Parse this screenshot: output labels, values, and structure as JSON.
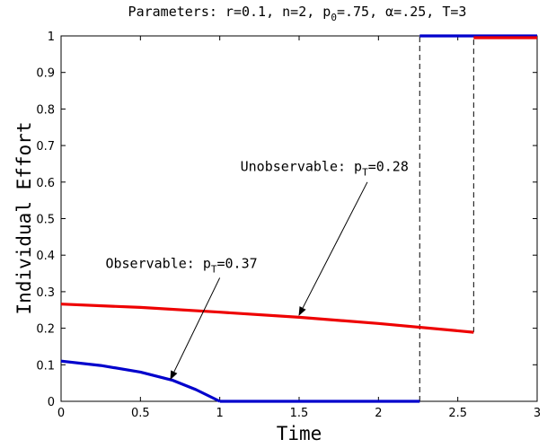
{
  "chart_data": {
    "type": "line",
    "title": {
      "prefix": "Parameters: r=0.1, n=2, p",
      "sub": "0",
      "suffix": "=.75, α=.25, T=3"
    },
    "xlabel": "Time",
    "ylabel": "Individual Effort",
    "xlim": [
      0,
      3
    ],
    "ylim": [
      0,
      1
    ],
    "xticks": [
      0,
      0.5,
      1,
      1.5,
      2,
      2.5,
      3
    ],
    "xtick_labels": [
      "0",
      "0.5",
      "1",
      "1.5",
      "2",
      "2.5",
      "3"
    ],
    "yticks": [
      0,
      0.1,
      0.2,
      0.3,
      0.4,
      0.5,
      0.6,
      0.7,
      0.8,
      0.9,
      1
    ],
    "ytick_labels": [
      "0",
      "0.1",
      "0.2",
      "0.3",
      "0.4",
      "0.5",
      "0.6",
      "0.7",
      "0.8",
      "0.9",
      "1"
    ],
    "grid": false,
    "series": [
      {
        "color": "#0000cc",
        "segments": [
          {
            "x": [
              0,
              0.25,
              0.5,
              0.7,
              0.85,
              1.0
            ],
            "y": [
              0.11,
              0.098,
              0.08,
              0.058,
              0.032,
              0.0
            ]
          },
          {
            "x": [
              1.0,
              2.26
            ],
            "y": [
              0.0,
              0.0
            ]
          },
          {
            "x": [
              2.26,
              3.0
            ],
            "y": [
              1.0,
              1.0
            ]
          }
        ]
      },
      {
        "color": "#ee0000",
        "segments": [
          {
            "x": [
              0,
              0.5,
              1.0,
              1.5,
              2.0,
              2.6
            ],
            "y": [
              0.266,
              0.257,
              0.244,
              0.23,
              0.213,
              0.189
            ]
          },
          {
            "x": [
              2.6,
              3.0
            ],
            "y": [
              0.995,
              0.995
            ]
          }
        ]
      }
    ],
    "vlines": [
      {
        "x": 2.26,
        "y_from": 0,
        "y_to": 1.0,
        "style": "dashed"
      },
      {
        "x": 2.6,
        "y_from": 0.189,
        "y_to": 1.0,
        "style": "dashed"
      }
    ],
    "annotations": [
      {
        "id": "observable",
        "prefix": "Observable: p",
        "sub": "T",
        "suffix": "=0.37",
        "text_x": 0.28,
        "text_y": 0.365,
        "arrow_from": [
          1.0,
          0.338
        ],
        "arrow_to": [
          0.69,
          0.061
        ]
      },
      {
        "id": "unobservable",
        "prefix": "Unobservable: p",
        "sub": "T",
        "suffix": "=0.28",
        "text_x": 1.13,
        "text_y": 0.63,
        "arrow_from": [
          1.93,
          0.6
        ],
        "arrow_to": [
          1.5,
          0.236
        ]
      }
    ]
  }
}
